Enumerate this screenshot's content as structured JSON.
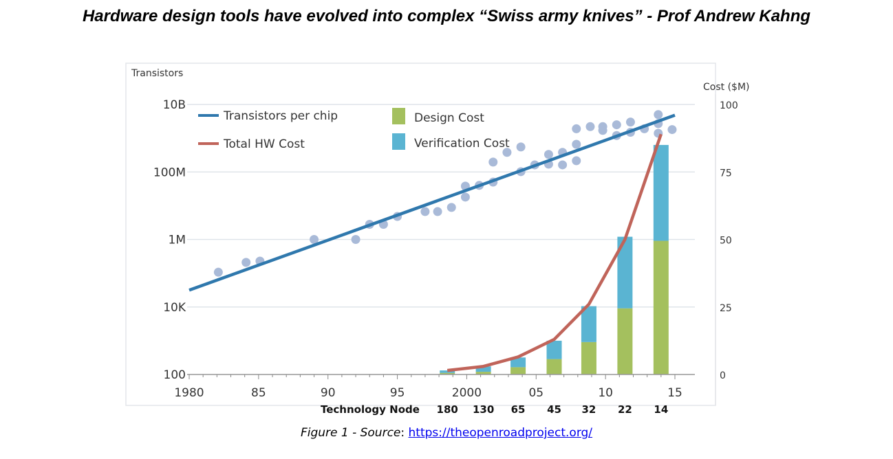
{
  "title": "Hardware design tools have evolved into complex “Swiss army knives” - Prof Andrew Kahng",
  "caption": {
    "label": "Figure 1 - Source",
    "separator": ": ",
    "link_text": "https://theopenroadproject.org/"
  },
  "chart_data": {
    "type": "bar+line+scatter",
    "left_axis": {
      "label": "Transistors",
      "scale": "log",
      "range": [
        100,
        10000000000
      ],
      "ticks": [
        {
          "v": 10000000000,
          "label": "10B"
        },
        {
          "v": 100000000,
          "label": "100M"
        },
        {
          "v": 1000000,
          "label": "1M"
        },
        {
          "v": 10000,
          "label": "10K"
        },
        {
          "v": 100,
          "label": "100"
        }
      ]
    },
    "right_axis": {
      "label": "Cost ($M)",
      "scale": "linear",
      "range": [
        0,
        100
      ],
      "ticks": [
        100,
        75,
        50,
        25,
        0
      ]
    },
    "x_axis": {
      "range": [
        1980,
        2015
      ],
      "ticks": [
        {
          "v": 1980,
          "label": "1980"
        },
        {
          "v": 1985,
          "label": "85"
        },
        {
          "v": 1990,
          "label": "90"
        },
        {
          "v": 1995,
          "label": "95"
        },
        {
          "v": 2000,
          "label": "2000"
        },
        {
          "v": 2005,
          "label": "05"
        },
        {
          "v": 2010,
          "label": "10"
        },
        {
          "v": 2015,
          "label": "15"
        }
      ]
    },
    "technology_node": {
      "label": "Technology Node",
      "nodes": [
        {
          "year": 1998.6,
          "label": "180"
        },
        {
          "year": 2001.2,
          "label": "130"
        },
        {
          "year": 2003.7,
          "label": "65"
        },
        {
          "year": 2006.3,
          "label": "45"
        },
        {
          "year": 2008.8,
          "label": "32"
        },
        {
          "year": 2011.4,
          "label": "22"
        },
        {
          "year": 2014,
          "label": "14"
        }
      ]
    },
    "grid": true,
    "legend": {
      "placement": "top-left",
      "items": [
        {
          "name": "Transistors per chip",
          "kind": "line",
          "color": "#2f78ad"
        },
        {
          "name": "Total HW Cost",
          "kind": "line",
          "color": "#c0645a"
        },
        {
          "name": "Design Cost",
          "kind": "bar",
          "color": "#a4c05e"
        },
        {
          "name": "Verification Cost",
          "kind": "bar",
          "color": "#5ab4d2"
        }
      ]
    },
    "transistors_trend": [
      [
        1980,
        31600
      ],
      [
        2015,
        4800000000
      ]
    ],
    "transistor_points": [
      [
        1982.1,
        107000
      ],
      [
        1984.1,
        209000
      ],
      [
        1985.1,
        229000
      ],
      [
        1989.0,
        1000000
      ],
      [
        1992.0,
        1000000
      ],
      [
        1993.0,
        2800000
      ],
      [
        1994.0,
        2800000
      ],
      [
        1995.0,
        4800000
      ],
      [
        1997.0,
        6700000
      ],
      [
        1997.9,
        6700000
      ],
      [
        1998.9,
        8900000
      ],
      [
        1999.9,
        18000000
      ],
      [
        1999.9,
        38000000
      ],
      [
        2000.9,
        40000000
      ],
      [
        2001.9,
        50000000
      ],
      [
        2001.9,
        196000000
      ],
      [
        2002.9,
        380000000
      ],
      [
        2003.9,
        550000000
      ],
      [
        2003.9,
        102000000
      ],
      [
        2004.9,
        162000000
      ],
      [
        2005.9,
        170000000
      ],
      [
        2005.9,
        330000000
      ],
      [
        2006.9,
        162000000
      ],
      [
        2006.9,
        380000000
      ],
      [
        2007.9,
        215000000
      ],
      [
        2007.9,
        660000000
      ],
      [
        2007.9,
        1900000000
      ],
      [
        2008.9,
        2200000000
      ],
      [
        2009.8,
        1700000000
      ],
      [
        2009.8,
        2200000000
      ],
      [
        2010.8,
        1200000000
      ],
      [
        2010.8,
        2500000000
      ],
      [
        2011.8,
        1500000000
      ],
      [
        2011.8,
        3000000000
      ],
      [
        2012.8,
        1900000000
      ],
      [
        2013.8,
        1400000000
      ],
      [
        2013.8,
        2700000000
      ],
      [
        2013.8,
        5000000000
      ],
      [
        2014.8,
        1800000000
      ]
    ],
    "cost_bars": {
      "years": [
        1998.6,
        2001.2,
        2003.7,
        2006.3,
        2008.8,
        2011.4,
        2014
      ],
      "design": [
        0.6,
        1,
        2.7,
        5.7,
        12,
        24.5,
        49.5
      ],
      "verification": [
        0.9,
        2,
        3.6,
        6.8,
        13.3,
        26.5,
        35.5
      ]
    },
    "total_hw_cost": [
      [
        1998.6,
        1.5
      ],
      [
        2001.2,
        3
      ],
      [
        2003.7,
        6.5
      ],
      [
        2006.3,
        13
      ],
      [
        2008.8,
        26
      ],
      [
        2011.4,
        50
      ],
      [
        2014,
        89
      ]
    ]
  }
}
